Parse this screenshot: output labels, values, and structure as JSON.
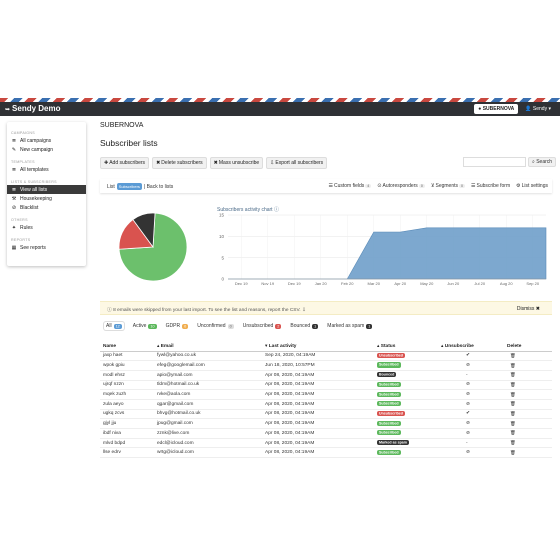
{
  "app": {
    "name": "Sendy Demo"
  },
  "navbar": {
    "brand_button": "SUBERNOVA",
    "user": "Sendy"
  },
  "sidebar": {
    "sections": [
      {
        "header": "CAMPAIGNS",
        "items": [
          {
            "label": "All campaigns",
            "icon": "list-icon",
            "glyph": "≣",
            "active": false
          },
          {
            "label": "New campaign",
            "icon": "edit-icon",
            "glyph": "✎",
            "active": false
          }
        ]
      },
      {
        "header": "TEMPLATES",
        "items": [
          {
            "label": "All templates",
            "icon": "list-icon",
            "glyph": "≣",
            "active": false
          }
        ]
      },
      {
        "header": "LISTS & SUBSCRIBERS",
        "items": [
          {
            "label": "View all lists",
            "icon": "list-icon",
            "glyph": "≣",
            "active": true
          },
          {
            "label": "Housekeeping",
            "icon": "wrench-icon",
            "glyph": "⚒",
            "active": false
          },
          {
            "label": "Blacklist",
            "icon": "ban-icon",
            "glyph": "⊘",
            "active": false
          }
        ]
      },
      {
        "header": "OTHERS",
        "items": [
          {
            "label": "Rules",
            "icon": "wand-icon",
            "glyph": "✦",
            "active": false
          }
        ]
      },
      {
        "header": "REPORTS",
        "items": [
          {
            "label": "See reports",
            "icon": "report-icon",
            "glyph": "▦",
            "active": false
          }
        ]
      }
    ]
  },
  "header": {
    "brand_title": "SUBERNOVA",
    "page_title": "Subscriber lists"
  },
  "toolbar": {
    "buttons": [
      {
        "label": "Add subscribers",
        "glyph": "✚"
      },
      {
        "label": "Delete subscribers",
        "glyph": "✖"
      },
      {
        "label": "Mass unsubscribe",
        "glyph": "✖"
      },
      {
        "label": "Export all subscribers",
        "glyph": "⇩"
      }
    ],
    "search_placeholder": "",
    "search_label": "Search"
  },
  "subbar": {
    "list_label": "List",
    "list_name": "Subscribers",
    "back_label": "| Back to lists",
    "actions": [
      {
        "label": "Custom fields",
        "count": "4",
        "glyph": "☰"
      },
      {
        "label": "Autoresponders",
        "count": "0",
        "glyph": "⊙"
      },
      {
        "label": "Segments",
        "count": "0",
        "glyph": "⊻"
      },
      {
        "label": "Subscribe form",
        "count": "",
        "glyph": "☰"
      },
      {
        "label": "List settings",
        "count": "",
        "glyph": "⚙"
      }
    ]
  },
  "colors": {
    "green": "#6cc06c",
    "red": "#d9534f",
    "dark": "#333333",
    "area": "#6f9fca",
    "yellow": "#f0ad4e",
    "blue": "#5b9bd5"
  },
  "chart_data": [
    {
      "type": "pie",
      "values": [
        73,
        16,
        11
      ],
      "colors": [
        "#6cc06c",
        "#d9534f",
        "#333333"
      ],
      "labels": [
        "",
        "",
        ""
      ]
    },
    {
      "type": "area",
      "title": "Subscribers activity chart",
      "categories": [
        "Dec 19",
        "Nov 19",
        "Dec 19",
        "Jan 20",
        "Feb 20",
        "Mar 20",
        "Apr 20",
        "May 20",
        "Jun 20",
        "Jul 20",
        "Aug 20",
        "Sep 20"
      ],
      "values": [
        0,
        0,
        0,
        0,
        0,
        11,
        11,
        12,
        12,
        12,
        12,
        12
      ],
      "ylim": [
        0,
        15
      ],
      "yticks": [
        0,
        5,
        10,
        15
      ],
      "grid": true
    }
  ],
  "alert": {
    "text": "8 emails were skipped from your last import. To see the list and reasons, report the CSV.",
    "dismiss": "Dismiss"
  },
  "filters": [
    {
      "label": "All",
      "count": "12",
      "color": "#5b9bd5"
    },
    {
      "label": "Active",
      "count": "10",
      "color": "#5cb85c"
    },
    {
      "label": "GDPR",
      "count": "0",
      "color": "#f0ad4e"
    },
    {
      "label": "Unconfirmed",
      "count": "0",
      "color": "#dddddd"
    },
    {
      "label": "Unsubscribed",
      "count": "2",
      "color": "#d9534f"
    },
    {
      "label": "Bounced",
      "count": "1",
      "color": "#333333"
    },
    {
      "label": "Marked as spam",
      "count": "1",
      "color": "#333333"
    }
  ],
  "table": {
    "columns": [
      "Name",
      "Email",
      "Last activity",
      "Status",
      "Unsubscribe",
      "Delete"
    ],
    "rows": [
      {
        "name": "jaxp haet",
        "email": "fywl@yahoo.co.uk",
        "activity": "Sep 24, 2020, 04:19AM",
        "status": "Unsubscribed",
        "st": "red",
        "unsub": "✔"
      },
      {
        "name": "wpok gpiu",
        "email": "efeg@googlemail.com",
        "activity": "Jun 18, 2020, 10:57PM",
        "status": "Subscribed",
        "st": "green",
        "unsub": "⊘"
      },
      {
        "name": "modl ehsz",
        "email": "apio@ymail.com",
        "activity": "Apr 08, 2020, 04:19AM",
        "status": "Bounced",
        "st": "dark",
        "unsub": "-"
      },
      {
        "name": "ujrqf nzzn",
        "email": "tldm@hotmail.co.uk",
        "activity": "Apr 08, 2020, 04:19AM",
        "status": "Subscribed",
        "st": "green",
        "unsub": "⊘"
      },
      {
        "name": "mqek zuzh",
        "email": "rvke@aola.com",
        "activity": "Apr 08, 2020, 04:19AM",
        "status": "Subscribed",
        "st": "green",
        "unsub": "⊘"
      },
      {
        "name": "zula aeyo",
        "email": "qgar@gmail.com",
        "activity": "Apr 08, 2020, 04:19AM",
        "status": "Subscribed",
        "st": "green",
        "unsub": "⊘"
      },
      {
        "name": "ugkq zcvs",
        "email": "bhvg@hotmail.co.uk",
        "activity": "Apr 08, 2020, 04:19AM",
        "status": "Unsubscribed",
        "st": "red",
        "unsub": "✔"
      },
      {
        "name": "gjyl jju",
        "email": "jpug@gmail.com",
        "activity": "Apr 08, 2020, 04:19AM",
        "status": "Subscribed",
        "st": "green",
        "unsub": "⊘"
      },
      {
        "name": "ibdf niva",
        "email": "zznk@live.com",
        "activity": "Apr 08, 2020, 04:19AM",
        "status": "Subscribed",
        "st": "green",
        "unsub": "⊘"
      },
      {
        "name": "mlvd bdpd",
        "email": "edcl@icloud.com",
        "activity": "Apr 08, 2020, 04:19AM",
        "status": "Marked as spam",
        "st": "dark",
        "unsub": "-"
      },
      {
        "name": "llse edrv",
        "email": "wrtg@icloud.com",
        "activity": "Apr 08, 2020, 04:19AM",
        "status": "Subscribed",
        "st": "green",
        "unsub": "⊘"
      }
    ]
  }
}
